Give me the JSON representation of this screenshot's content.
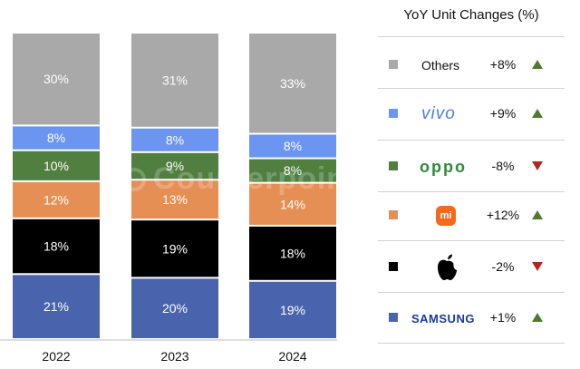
{
  "chart_data": {
    "type": "bar",
    "stacked": true,
    "categories": [
      "2022",
      "2023",
      "2024"
    ],
    "series": [
      {
        "name": "Samsung",
        "color": "#4963ad",
        "values": [
          21,
          20,
          19
        ]
      },
      {
        "name": "Apple",
        "color": "#000000",
        "values": [
          18,
          19,
          18
        ]
      },
      {
        "name": "Xiaomi",
        "color": "#e58f55",
        "values": [
          12,
          13,
          14
        ]
      },
      {
        "name": "OPPO",
        "color": "#507f3f",
        "values": [
          10,
          9,
          8
        ]
      },
      {
        "name": "vivo",
        "color": "#6c95f1",
        "values": [
          8,
          8,
          8
        ]
      },
      {
        "name": "Others",
        "color": "#a9a9a9",
        "values": [
          30,
          31,
          33
        ]
      }
    ],
    "labels": [
      [
        "21%",
        "18%",
        "12%",
        "10%",
        "8%",
        "30%"
      ],
      [
        "20%",
        "19%",
        "13%",
        "9%",
        "8%",
        "31%"
      ],
      [
        "19%",
        "18%",
        "14%",
        "8%",
        "8%",
        "33%"
      ]
    ],
    "ylim": [
      0,
      100
    ],
    "watermark": "Counterpoint"
  },
  "legend": {
    "title": "YoY Unit Changes (%)",
    "rows": [
      {
        "brand": "Others",
        "brand_display": "Others",
        "change": "+8%",
        "direction": "up",
        "swatch": "#a9a9a9"
      },
      {
        "brand": "vivo",
        "brand_display": "vivo",
        "change": "+9%",
        "direction": "up",
        "swatch": "#6c95f1"
      },
      {
        "brand": "OPPO",
        "brand_display": "oppo",
        "change": "-8%",
        "direction": "down",
        "swatch": "#507f3f"
      },
      {
        "brand": "Xiaomi",
        "brand_display": "mi",
        "change": "+12%",
        "direction": "up",
        "swatch": "#e58f55"
      },
      {
        "brand": "Apple",
        "brand_display": "apple-logo",
        "change": "-2%",
        "direction": "down",
        "swatch": "#000000"
      },
      {
        "brand": "Samsung",
        "brand_display": "SAMSUNG",
        "change": "+1%",
        "direction": "up",
        "swatch": "#4963ad"
      }
    ],
    "up_color": "#4e7a2e",
    "down_color": "#b3261e"
  }
}
